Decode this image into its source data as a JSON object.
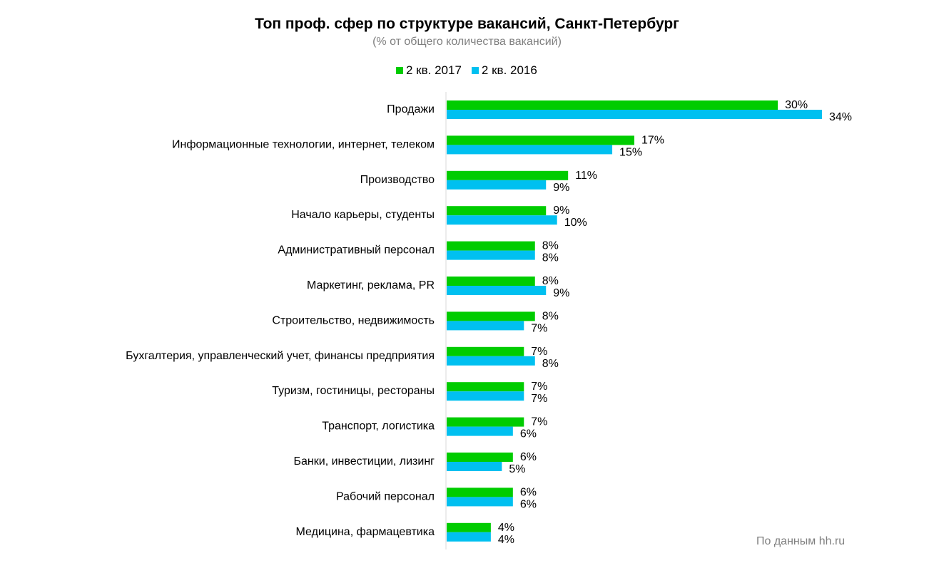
{
  "chart_data": {
    "type": "bar",
    "orientation": "horizontal",
    "title": "Топ проф. сфер по структуре  вакансий, Санкт-Петербург",
    "subtitle": "(% от общего количества вакансий)",
    "categories": [
      "Продажи",
      "Информационные  технологии,  интернет,  телеком",
      "Производство",
      "Начало карьеры, студенты",
      "Административный  персонал",
      "Маркетинг,  реклама,  PR",
      "Строительство,  недвижимость",
      "Бухгалтерия,  управленческий учет, финансы предприятия",
      "Туризм,  гостиницы,  рестораны",
      "Транспорт,  логистика",
      "Банки,  инвестиции,  лизинг",
      "Рабочий персонал",
      "Медицина,  фармацевтика"
    ],
    "series": [
      {
        "name": "2 кв. 2017",
        "color": "#00cc00",
        "values": [
          30,
          17,
          11,
          9,
          8,
          8,
          8,
          7,
          7,
          7,
          6,
          6,
          4
        ],
        "labels": [
          "30%",
          "17%",
          "11%",
          "9%",
          "8%",
          "8%",
          "8%",
          "7%",
          "7%",
          "7%",
          "6%",
          "6%",
          "4%"
        ]
      },
      {
        "name": "2 кв. 2016",
        "color": "#00c0f0",
        "values": [
          34,
          15,
          9,
          10,
          8,
          9,
          7,
          8,
          7,
          6,
          5,
          6,
          4
        ],
        "labels": [
          "34%",
          "15%",
          "9%",
          "10%",
          "8%",
          "9%",
          "7%",
          "8%",
          "7%",
          "6%",
          "5%",
          "6%",
          "4%"
        ]
      }
    ],
    "legend_position": "top",
    "grid": false
  },
  "footnote": "По данным  hh.ru"
}
